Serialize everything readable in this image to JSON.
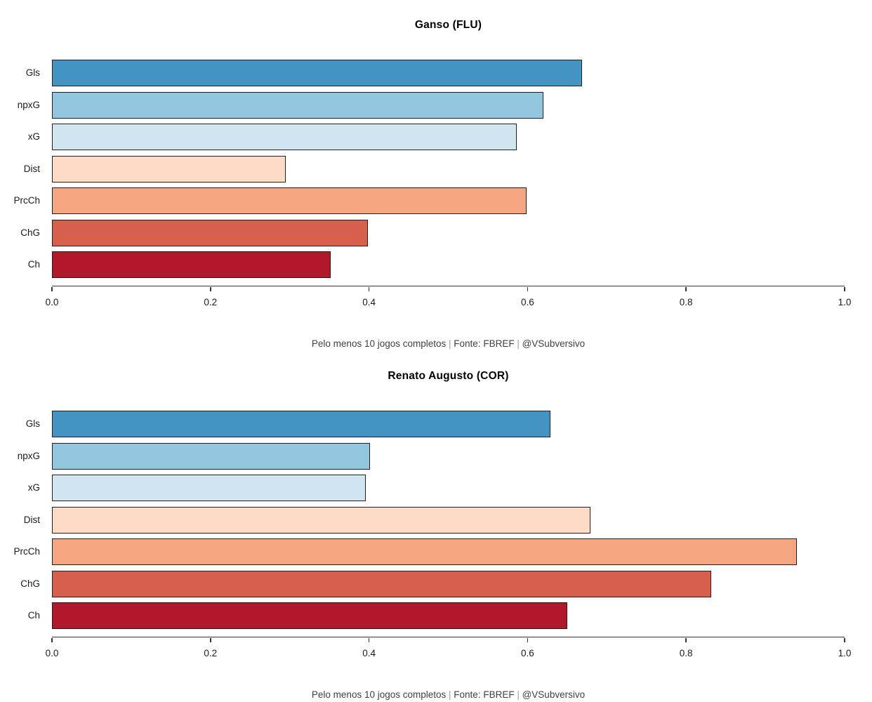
{
  "style": {
    "background": "#ffffff",
    "bar_border_color": "#1f1f1f",
    "axis_color": "#333333",
    "text_color": "#1a1a1a",
    "caption_text_color": "#404040",
    "caption_separator_color": "#9b9b9b"
  },
  "chart_data": [
    {
      "type": "bar",
      "orientation": "horizontal",
      "title": "Ganso (FLU)",
      "categories": [
        "Gls",
        "npxG",
        "xG",
        "Dist",
        "PrcCh",
        "ChG",
        "Ch"
      ],
      "values": [
        0.669,
        0.62,
        0.586,
        0.295,
        0.599,
        0.399,
        0.352
      ],
      "bar_colors": [
        "#4393C3",
        "#92C5DE",
        "#D1E5F0",
        "#FDDBC7",
        "#F4A582",
        "#D6604D",
        "#B2182B"
      ],
      "xlim": [
        0.0,
        1.0
      ],
      "x_ticks": [
        0.0,
        0.2,
        0.4,
        0.6,
        0.8,
        1.0
      ],
      "x_tick_labels": [
        "0.0",
        "0.2",
        "0.4",
        "0.6",
        "0.8",
        "1.0"
      ],
      "grid": false,
      "legend": "none",
      "caption_parts": [
        "Pelo menos 10 jogos completos",
        "Fonte: FBREF",
        "@VSubversivo"
      ],
      "caption_separator": " | "
    },
    {
      "type": "bar",
      "orientation": "horizontal",
      "title": "Renato Augusto (COR)",
      "categories": [
        "Gls",
        "npxG",
        "xG",
        "Dist",
        "PrcCh",
        "ChG",
        "Ch"
      ],
      "values": [
        0.629,
        0.401,
        0.396,
        0.679,
        0.94,
        0.832,
        0.65
      ],
      "bar_colors": [
        "#4393C3",
        "#92C5DE",
        "#D1E5F0",
        "#FDDBC7",
        "#F4A582",
        "#D6604D",
        "#B2182B"
      ],
      "xlim": [
        0.0,
        1.0
      ],
      "x_ticks": [
        0.0,
        0.2,
        0.4,
        0.6,
        0.8,
        1.0
      ],
      "x_tick_labels": [
        "0.0",
        "0.2",
        "0.4",
        "0.6",
        "0.8",
        "1.0"
      ],
      "grid": false,
      "legend": "none",
      "caption_parts": [
        "Pelo menos 10 jogos completos",
        "Fonte: FBREF",
        "@VSubversivo"
      ],
      "caption_separator": " | "
    }
  ]
}
